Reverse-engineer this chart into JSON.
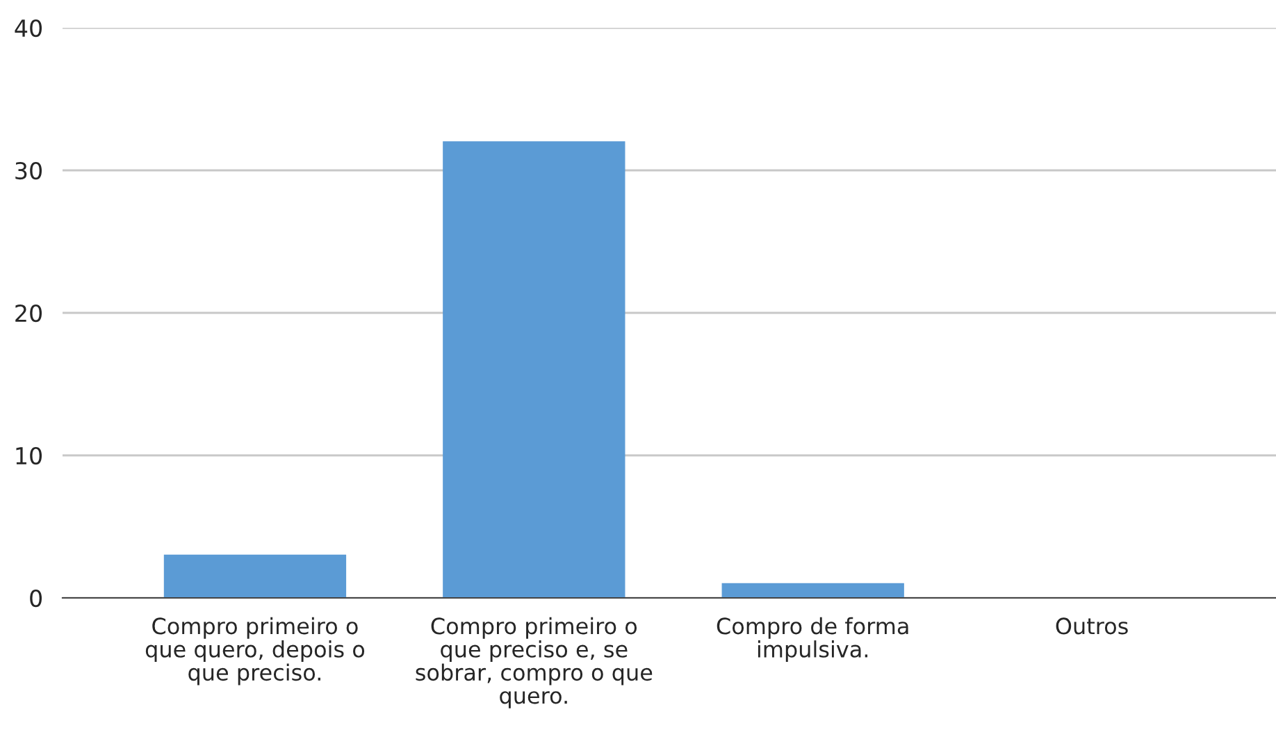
{
  "chart_data": {
    "type": "bar",
    "categories": [
      "Compro primeiro o\nque quero, depois o\nque preciso.",
      "Compro primeiro o\nque preciso e, se\nsobrar, compro o que\nquero.",
      "Compro de forma\nimpulsiva.",
      "Outros"
    ],
    "series": [
      {
        "color": "#5b9bd5",
        "values": [
          3,
          32,
          1,
          0
        ]
      }
    ],
    "ylim": [
      0,
      40
    ],
    "yticks": [
      0,
      10,
      20,
      30,
      40
    ],
    "grid": "y"
  }
}
